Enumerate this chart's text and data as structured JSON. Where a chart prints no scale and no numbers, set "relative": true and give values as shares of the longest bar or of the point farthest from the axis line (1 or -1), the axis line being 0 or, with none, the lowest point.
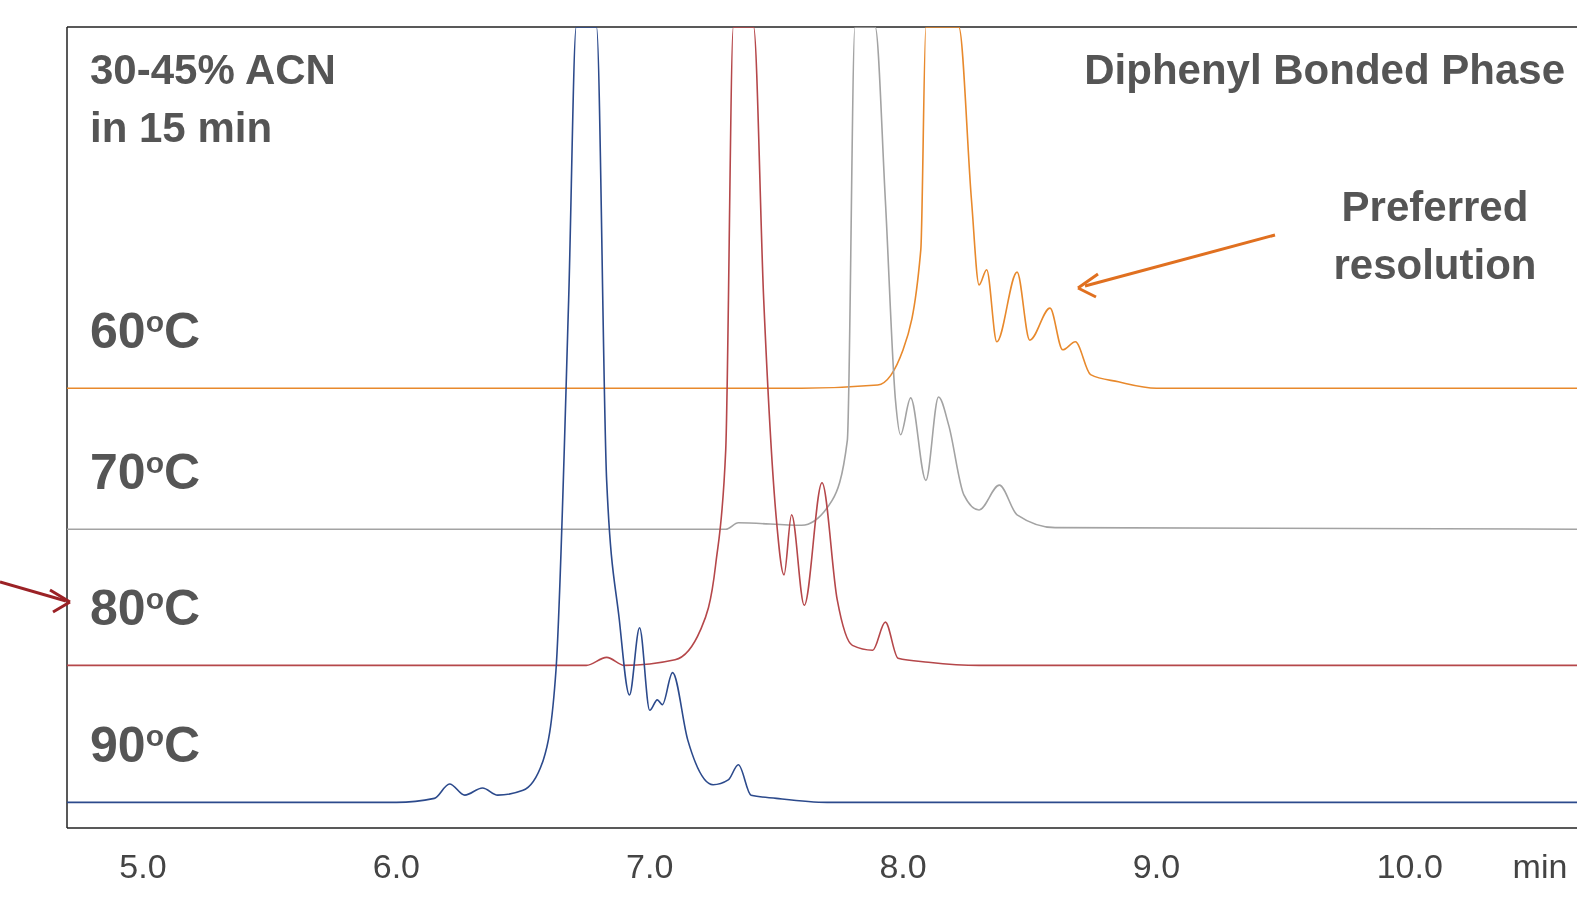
{
  "chart_data": {
    "type": "line",
    "title": "Diphenyl Bonded Phase",
    "xlabel": "min",
    "relative": true,
    "xlim": [
      4.7,
      10.66
    ],
    "xticks": [
      {
        "value": 5,
        "label": "5.0"
      },
      {
        "value": 6,
        "label": "6.0"
      },
      {
        "value": 7,
        "label": "7.0"
      },
      {
        "value": 8,
        "label": "8.0"
      },
      {
        "value": 9,
        "label": "9.0"
      },
      {
        "value": 10,
        "label": "10.0"
      }
    ],
    "tick_labels": "x",
    "line_style": "solid",
    "annotations": [
      "30-45% ACN",
      "in 15 min",
      "Preferred",
      "resolution"
    ],
    "series": [
      {
        "name": "60$^{o}$C",
        "color": "#e8892c",
        "x": [
          4.7,
          7.6,
          7.9,
          8.0,
          8.07,
          8.09,
          8.22,
          8.27,
          8.3,
          8.33,
          8.37,
          8.45,
          8.5,
          8.58,
          8.63,
          8.68,
          8.74,
          8.85,
          9.0,
          10.66
        ],
        "values": [
          0.549,
          0.549,
          0.553,
          0.597,
          0.722,
          1,
          1,
          0.784,
          0.678,
          0.697,
          0.607,
          0.694,
          0.609,
          0.649,
          0.597,
          0.607,
          0.566,
          0.557,
          0.549,
          0.549
        ]
      },
      {
        "name": "70$^{o}$C",
        "color": "#a3a3a3",
        "x": [
          4.7,
          7.3,
          7.35,
          7.6,
          7.72,
          7.78,
          7.81,
          7.89,
          7.93,
          7.97,
          7.99,
          8.03,
          8.09,
          8.14,
          8.18,
          8.24,
          8.3,
          8.38,
          8.45,
          8.6,
          10.66
        ],
        "values": [
          0.373,
          0.373,
          0.381,
          0.378,
          0.409,
          0.484,
          1,
          1,
          0.784,
          0.534,
          0.491,
          0.537,
          0.434,
          0.538,
          0.503,
          0.416,
          0.397,
          0.428,
          0.391,
          0.375,
          0.373
        ]
      },
      {
        "name": "80$^{o}$C",
        "color": "#b5474a",
        "x": [
          4.7,
          6.75,
          6.83,
          6.9,
          7.1,
          7.2,
          7.26,
          7.3,
          7.33,
          7.41,
          7.45,
          7.5,
          7.53,
          7.56,
          7.61,
          7.68,
          7.74,
          7.8,
          7.88,
          7.93,
          7.98,
          8.1,
          8.3,
          10.66
        ],
        "values": [
          0.203,
          0.203,
          0.213,
          0.203,
          0.21,
          0.247,
          0.328,
          0.472,
          1,
          1,
          0.659,
          0.385,
          0.316,
          0.391,
          0.278,
          0.431,
          0.285,
          0.228,
          0.222,
          0.257,
          0.212,
          0.207,
          0.203,
          0.203
        ]
      },
      {
        "name": "90$^{o}$C",
        "color": "#2c4a8c",
        "x": [
          4.7,
          6.0,
          6.15,
          6.21,
          6.27,
          6.34,
          6.4,
          6.5,
          6.58,
          6.63,
          6.68,
          6.71,
          6.79,
          6.83,
          6.88,
          6.92,
          6.96,
          7.0,
          7.03,
          7.05,
          7.09,
          7.15,
          7.25,
          7.31,
          7.35,
          7.4,
          7.5,
          7.7,
          10.66
        ],
        "values": [
          0.032,
          0.032,
          0.037,
          0.055,
          0.041,
          0.05,
          0.041,
          0.047,
          0.085,
          0.197,
          0.659,
          1,
          1,
          0.434,
          0.26,
          0.166,
          0.25,
          0.147,
          0.16,
          0.154,
          0.194,
          0.11,
          0.054,
          0.06,
          0.079,
          0.041,
          0.037,
          0.032,
          0.032
        ]
      }
    ]
  }
}
